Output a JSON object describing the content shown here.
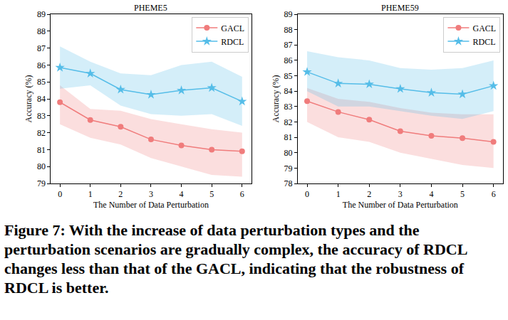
{
  "chart_data": [
    {
      "type": "line",
      "title": "PHEME5",
      "x_label": "The Number of Data Perturbation",
      "y_label": "Accuracy (%)",
      "x": [
        0,
        1,
        2,
        3,
        4,
        5,
        6
      ],
      "xlim": [
        -0.3,
        6.3
      ],
      "xticks": [
        0,
        1,
        2,
        3,
        4,
        5,
        6
      ],
      "ylim": [
        79,
        89
      ],
      "yticks": [
        79,
        80,
        81,
        82,
        83,
        84,
        85,
        86,
        87,
        88,
        89
      ],
      "grid": false,
      "legend": "upper right",
      "series": [
        {
          "name": "GACL",
          "color": "#f07c7c",
          "marker": "circle",
          "line_style": "solid",
          "values": [
            83.8,
            82.75,
            82.35,
            81.6,
            81.25,
            81.0,
            80.9
          ],
          "lower": [
            82.5,
            81.7,
            81.3,
            80.5,
            80.0,
            79.5,
            79.4
          ],
          "upper": [
            84.8,
            83.4,
            83.3,
            82.8,
            82.5,
            82.2,
            82.0
          ]
        },
        {
          "name": "RDCL",
          "color": "#55bde8",
          "marker": "star",
          "line_style": "solid",
          "values": [
            85.85,
            85.5,
            84.55,
            84.25,
            84.5,
            84.65,
            83.85
          ],
          "lower": [
            84.6,
            84.8,
            83.6,
            83.1,
            83.0,
            83.1,
            82.4
          ],
          "upper": [
            87.1,
            86.2,
            85.5,
            85.4,
            86.0,
            86.2,
            85.3
          ]
        }
      ]
    },
    {
      "type": "line",
      "title": "PHEME59",
      "x_label": "The Number of Data Perturbation",
      "y_label": "Accuracy (%)",
      "x": [
        0,
        1,
        2,
        3,
        4,
        5,
        6
      ],
      "xlim": [
        -0.3,
        6.3
      ],
      "xticks": [
        0,
        1,
        2,
        3,
        4,
        5,
        6
      ],
      "ylim": [
        78,
        89
      ],
      "yticks": [
        78,
        79,
        80,
        81,
        82,
        83,
        84,
        85,
        86,
        87,
        88,
        89
      ],
      "grid": false,
      "legend": "upper right",
      "series": [
        {
          "name": "GACL",
          "color": "#f07c7c",
          "marker": "circle",
          "line_style": "solid",
          "values": [
            83.35,
            82.65,
            82.15,
            81.4,
            81.1,
            80.95,
            80.7
          ],
          "lower": [
            82.0,
            81.0,
            80.7,
            80.0,
            79.6,
            79.2,
            79.0
          ],
          "upper": [
            84.2,
            83.5,
            83.3,
            82.9,
            82.6,
            82.5,
            82.5
          ]
        },
        {
          "name": "RDCL",
          "color": "#55bde8",
          "marker": "star",
          "line_style": "solid",
          "values": [
            85.25,
            84.5,
            84.45,
            84.15,
            83.9,
            83.8,
            84.35
          ],
          "lower": [
            84.0,
            83.0,
            83.0,
            82.7,
            82.4,
            82.2,
            82.7
          ],
          "upper": [
            86.6,
            86.2,
            86.0,
            85.5,
            85.4,
            85.5,
            86.0
          ]
        }
      ]
    }
  ],
  "caption": "Figure 7: With the increase of data perturbation types and the perturbation scenarios are gradually complex, the accuracy of RDCL changes less than that of the GACL, indicating that the robustness of RDCL is better."
}
